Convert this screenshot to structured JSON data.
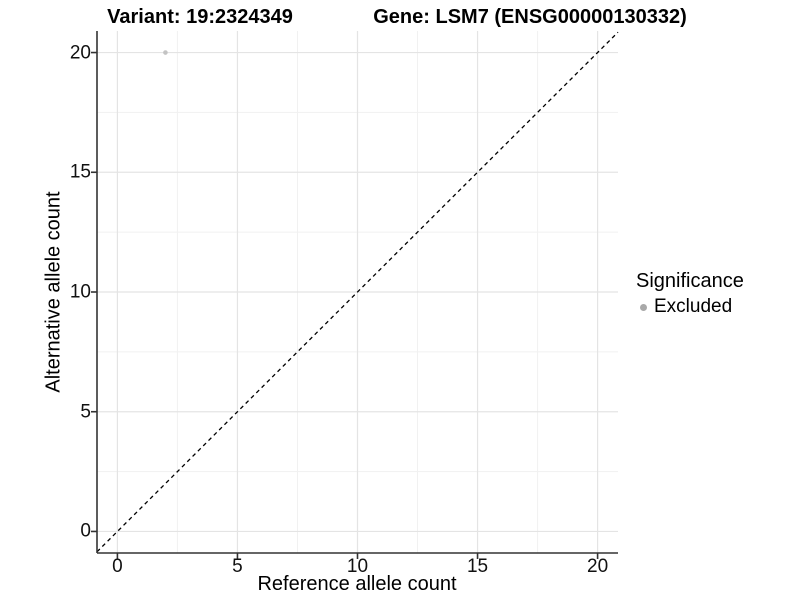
{
  "title": {
    "variant": "Variant: 19:2324349",
    "gene": "Gene: LSM7 (ENSG00000130332)"
  },
  "axes": {
    "x": {
      "label": "Reference allele count",
      "tick_labels": [
        "0",
        "5",
        "10",
        "15",
        "20"
      ]
    },
    "y": {
      "label": "Alternative allele count",
      "tick_labels": [
        "0",
        "5",
        "10",
        "15",
        "20"
      ]
    }
  },
  "legend": {
    "title": "Significance",
    "items": [
      {
        "label": "Excluded",
        "color": "#a9a9a9"
      }
    ]
  },
  "chart_data": {
    "type": "scatter",
    "title": "Variant: 19:2324349   Gene: LSM7 (ENSG00000130332)",
    "xlabel": "Reference allele count",
    "ylabel": "Alternative allele count",
    "xlim": [
      -0.85,
      20.85
    ],
    "ylim": [
      -0.9,
      20.9
    ],
    "x_ticks": [
      0,
      5,
      10,
      15,
      20
    ],
    "y_ticks": [
      0,
      5,
      10,
      15,
      20
    ],
    "minor_gridlines_between_majors": true,
    "grid": "major+minor",
    "legend_position": "right",
    "series": [
      {
        "name": "Excluded",
        "marker": "circle",
        "color": "#c3c3c3",
        "points": [
          [
            2,
            20
          ]
        ]
      }
    ],
    "reference_line": {
      "equation": "y = x",
      "style": "dashed",
      "color": "#000000",
      "from": [
        -0.85,
        -0.85
      ],
      "to": [
        20.85,
        20.85
      ]
    }
  },
  "colors": {
    "background": "#ffffff",
    "axis_line": "#333333",
    "grid_major": "#e4e4e4",
    "grid_minor": "#f1f1f1",
    "text": "#000000",
    "point": "#c3c3c3",
    "legend_point": "#a9a9a9"
  }
}
